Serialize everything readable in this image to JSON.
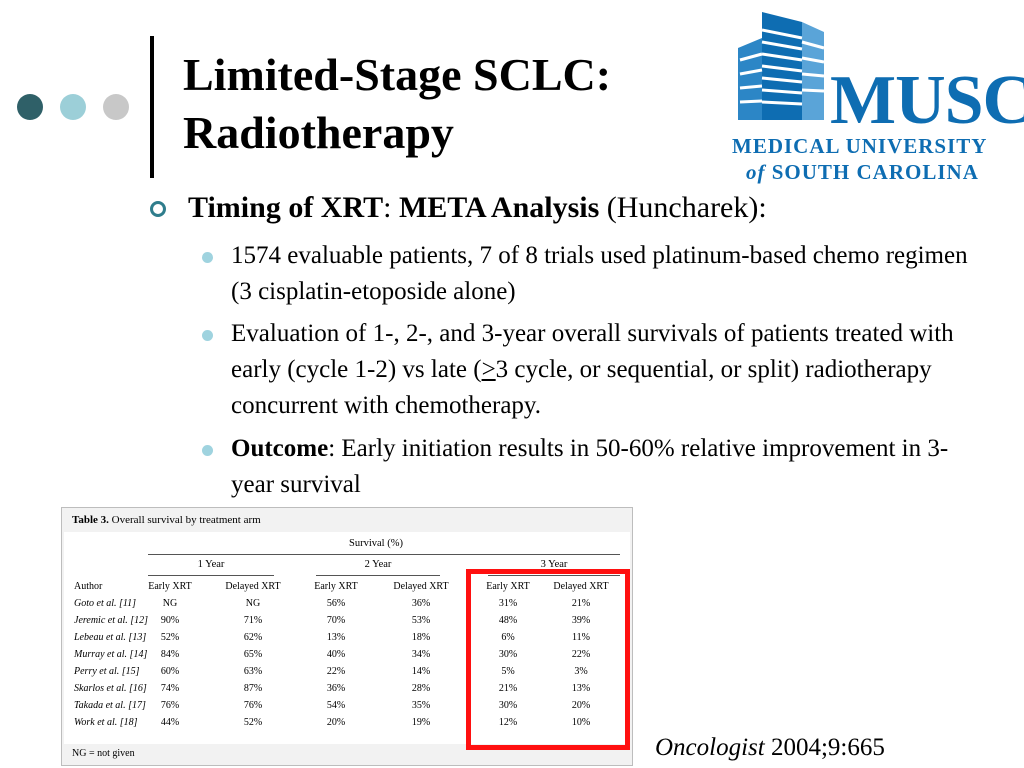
{
  "slide": {
    "title_line1": "Limited-Stage SCLC:",
    "title_line2": "Radiotherapy",
    "dot_colors": [
      "#2f6068",
      "#9ccfd8",
      "#c8c8c8"
    ]
  },
  "logo": {
    "word": "MUSC",
    "line1": "MEDICAL UNIVERSITY",
    "line2_italic": "of",
    "line2_rest": "SOUTH CAROLINA",
    "color": "#0e6db2"
  },
  "content": {
    "main_bold1": "Timing of XRT",
    "main_sep": ": ",
    "main_bold2": "META Analysis",
    "main_rest": " (Huncharek):",
    "bullets": [
      {
        "text": "1574 evaluable patients, 7 of 8 trials used platinum-based chemo regimen (3 cisplatin-etoposide alone)"
      },
      {
        "pre": "Evaluation of 1-, 2-, and 3-year overall survivals of patients treated with early (cycle 1-2) vs late (",
        "underlined": ">",
        "post": "3 cycle, or sequential, or split) radiotherapy concurrent with chemotherapy."
      },
      {
        "bold": "Outcome",
        "rest": ": Early initiation results in 50-60% relative improvement in 3-year survival"
      }
    ]
  },
  "table": {
    "caption_bold": "Table 3.",
    "caption_rest": " Overall survival by treatment arm",
    "survival_header": "Survival (%)",
    "year_headers": [
      "1 Year",
      "2 Year",
      "3 Year"
    ],
    "author_header": "Author",
    "col_headers": [
      "Early XRT",
      "Delayed XRT",
      "Early XRT",
      "Delayed XRT",
      "Early XRT",
      "Delayed XRT"
    ],
    "rows": [
      {
        "author": "Goto et al. [11]",
        "values": [
          "NG",
          "NG",
          "56%",
          "36%",
          "31%",
          "21%"
        ]
      },
      {
        "author": "Jeremic et al. [12]",
        "values": [
          "90%",
          "71%",
          "70%",
          "53%",
          "48%",
          "39%"
        ]
      },
      {
        "author": "Lebeau et al. [13]",
        "values": [
          "52%",
          "62%",
          "13%",
          "18%",
          "6%",
          "11%"
        ]
      },
      {
        "author": "Murray et al. [14]",
        "values": [
          "84%",
          "65%",
          "40%",
          "34%",
          "30%",
          "22%"
        ]
      },
      {
        "author": "Perry et al. [15]",
        "values": [
          "60%",
          "63%",
          "22%",
          "14%",
          "5%",
          "3%"
        ]
      },
      {
        "author": "Skarlos et al. [16]",
        "values": [
          "74%",
          "87%",
          "36%",
          "28%",
          "21%",
          "13%"
        ]
      },
      {
        "author": "Takada et al. [17]",
        "values": [
          "76%",
          "76%",
          "54%",
          "35%",
          "30%",
          "20%"
        ]
      },
      {
        "author": "Work et al. [18]",
        "values": [
          "44%",
          "52%",
          "20%",
          "19%",
          "12%",
          "10%"
        ]
      }
    ],
    "footnote": "NG = not given",
    "highlight_color": "#ff1010"
  },
  "citation": {
    "journal": "Oncologist",
    "ref": " 2004;9:665"
  }
}
